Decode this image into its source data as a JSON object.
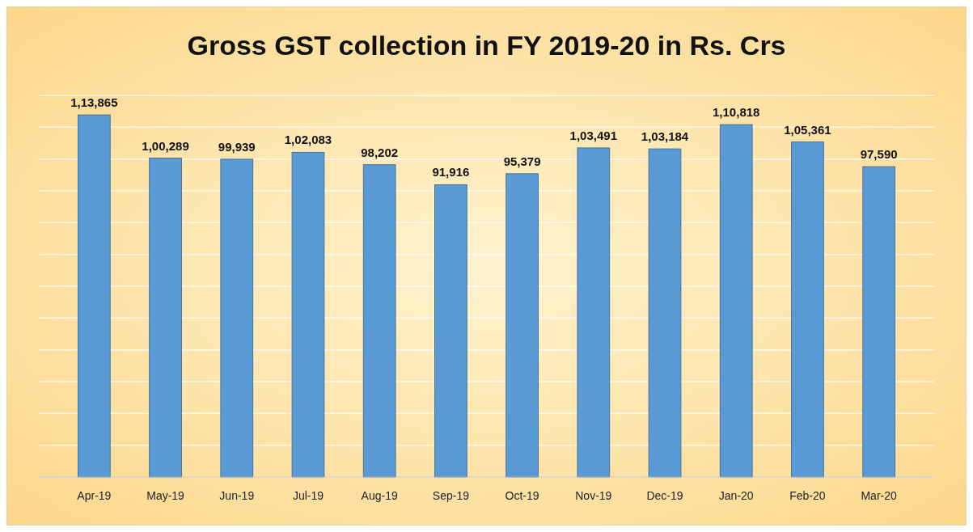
{
  "chart_data": {
    "type": "bar",
    "title": "Gross GST collection in FY 2019-20 in Rs. Crs",
    "categories": [
      "Apr-19",
      "May-19",
      "Jun-19",
      "Jul-19",
      "Aug-19",
      "Sep-19",
      "Oct-19",
      "Nov-19",
      "Dec-19",
      "Jan-20",
      "Feb-20",
      "Mar-20"
    ],
    "values": [
      113865,
      100289,
      99939,
      102083,
      98202,
      91916,
      95379,
      103491,
      103184,
      110818,
      105361,
      97590
    ],
    "value_labels": [
      "1,13,865",
      "1,00,289",
      "99,939",
      "1,02,083",
      "98,202",
      "91,916",
      "95,379",
      "1,03,491",
      "1,03,184",
      "1,10,818",
      "1,05,361",
      "97,590"
    ],
    "color": "#5b9bd5",
    "ylim": [
      0,
      120000
    ],
    "yticks": [
      {
        "value": 0,
        "label": null
      },
      {
        "value": 10000,
        "label": null
      },
      {
        "value": 20000,
        "label": null
      },
      {
        "value": 30000,
        "label": null
      },
      {
        "value": 40000,
        "label": null
      },
      {
        "value": 50000,
        "label": null
      },
      {
        "value": 60000,
        "label": null
      },
      {
        "value": 70000,
        "label": null
      },
      {
        "value": 80000,
        "label": null
      },
      {
        "value": 90000,
        "label": null
      },
      {
        "value": 100000,
        "label": null
      },
      {
        "value": 110000,
        "label": null
      },
      {
        "value": 120000,
        "label": null
      }
    ],
    "tick_labels": "x",
    "grid": "y"
  }
}
